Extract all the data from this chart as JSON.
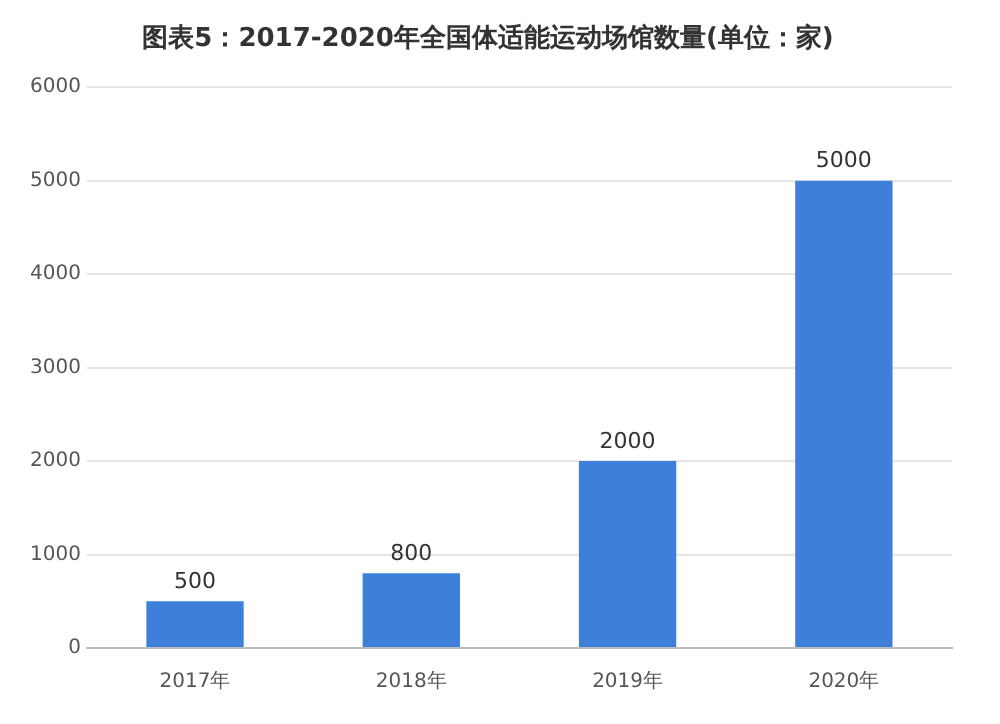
{
  "chart_data": {
    "type": "bar",
    "title": "图表5：2017-2020年全国体适能运动场馆数量(单位：家)",
    "categories": [
      "2017年",
      "2018年",
      "2019年",
      "2020年"
    ],
    "values": [
      500,
      800,
      2000,
      5000
    ],
    "color": "#3d7fd9",
    "ylim": [
      0,
      6000
    ],
    "yticks": [
      0,
      1000,
      2000,
      3000,
      4000,
      5000,
      6000
    ],
    "grid": "y",
    "data_labels": true
  }
}
